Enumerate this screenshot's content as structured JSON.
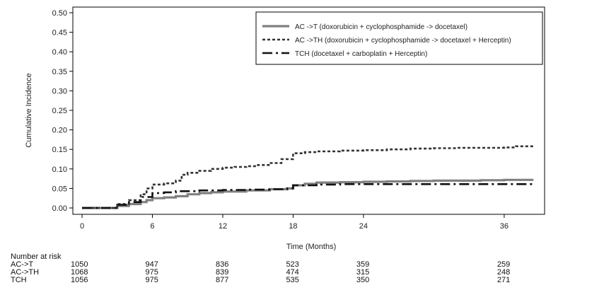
{
  "chart_data": {
    "type": "line",
    "title": "",
    "xlabel": "Time (Months)",
    "ylabel": "Cumulative Incidence",
    "xlim": [
      -1,
      40
    ],
    "ylim": [
      0,
      0.5
    ],
    "x_ticks": [
      0,
      6,
      12,
      18,
      24,
      36
    ],
    "y_ticks": [
      0.0,
      0.05,
      0.1,
      0.15,
      0.2,
      0.25,
      0.3,
      0.35,
      0.4,
      0.45,
      0.5
    ],
    "y_tick_labels": [
      "0.00",
      "0.05",
      "0.10",
      "0.15",
      "0.20",
      "0.25",
      "0.30",
      "0.35",
      "0.40",
      "0.45",
      "0.50"
    ],
    "grid": false,
    "legend_placement": "top-right",
    "series": [
      {
        "name": "AC ->T (doxorubicin + cyclophosphamide -> docetaxel)",
        "style": "solid",
        "color": "#808080",
        "x": [
          0,
          2.5,
          3,
          4,
          5,
          5.5,
          6,
          7,
          8,
          9,
          10,
          11,
          12,
          14,
          16,
          17.5,
          18,
          19,
          20,
          22,
          24,
          26,
          28,
          30,
          32,
          34,
          36,
          38.5
        ],
        "y": [
          0,
          0,
          0.005,
          0.01,
          0.015,
          0.02,
          0.025,
          0.027,
          0.03,
          0.035,
          0.038,
          0.04,
          0.042,
          0.045,
          0.048,
          0.05,
          0.058,
          0.062,
          0.065,
          0.066,
          0.067,
          0.068,
          0.069,
          0.07,
          0.07,
          0.071,
          0.072,
          0.072
        ]
      },
      {
        "name": "AC ->TH (doxorubicin + cyclophosphamide -> docetaxel + Herceptin)",
        "style": "dotted",
        "color": "#333333",
        "x": [
          0,
          2.5,
          3,
          4,
          5,
          5.5,
          6,
          7,
          8,
          8.5,
          9,
          10,
          11,
          12,
          13,
          14,
          15,
          16,
          17,
          18,
          19,
          20,
          22,
          24,
          26,
          28,
          30,
          32,
          34,
          36,
          37,
          38.5
        ],
        "y": [
          0,
          0,
          0.01,
          0.02,
          0.035,
          0.05,
          0.06,
          0.063,
          0.07,
          0.085,
          0.09,
          0.095,
          0.1,
          0.103,
          0.105,
          0.107,
          0.11,
          0.115,
          0.125,
          0.14,
          0.143,
          0.145,
          0.147,
          0.148,
          0.15,
          0.152,
          0.153,
          0.154,
          0.154,
          0.155,
          0.158,
          0.155
        ]
      },
      {
        "name": "TCH (docetaxel + carboplatin + Herceptin)",
        "style": "dashdot",
        "color": "#111111",
        "x": [
          0,
          2.5,
          3,
          4,
          5,
          6,
          7,
          8,
          10,
          12,
          14,
          16,
          17.5,
          18,
          20,
          22,
          24,
          28,
          32,
          36,
          38.5
        ],
        "y": [
          0,
          0,
          0.008,
          0.015,
          0.028,
          0.038,
          0.04,
          0.043,
          0.045,
          0.046,
          0.047,
          0.048,
          0.05,
          0.058,
          0.06,
          0.061,
          0.061,
          0.061,
          0.061,
          0.061,
          0.061
        ]
      }
    ],
    "risk_table": {
      "header": "Number at risk",
      "rows": [
        {
          "label": "AC->T",
          "values": [
            "1050",
            "947",
            "836",
            "523",
            "359",
            "259"
          ]
        },
        {
          "label": "AC->TH",
          "values": [
            "1068",
            "975",
            "839",
            "474",
            "315",
            "248"
          ]
        },
        {
          "label": "TCH",
          "values": [
            "1056",
            "975",
            "877",
            "535",
            "350",
            "271"
          ]
        }
      ]
    }
  }
}
